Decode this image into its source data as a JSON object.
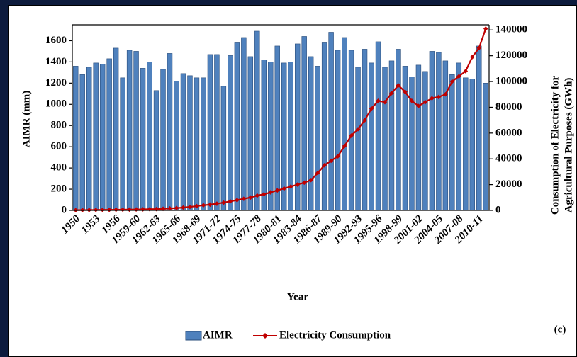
{
  "chart_data": {
    "type": "bar-line",
    "annotation": "(c)",
    "xlabel": "Year",
    "ylabel": "AIMR (mm)",
    "y2label": [
      "Consumption of Electricity for",
      "Agricultural Purposes  (GWh)"
    ],
    "categories": [
      "1950",
      null,
      null,
      "1953",
      null,
      null,
      "1956",
      null,
      null,
      "1959-60",
      null,
      null,
      "1962-63",
      null,
      null,
      "1965-66",
      null,
      null,
      "1968-69",
      null,
      null,
      "1971-72",
      null,
      null,
      "1974-75",
      null,
      null,
      "1977-78",
      null,
      null,
      "1980-81",
      null,
      null,
      "1983-84",
      null,
      null,
      "1986-87",
      null,
      null,
      "1989-90",
      null,
      null,
      "1992-93",
      null,
      null,
      "1995-96",
      null,
      null,
      "1998-99",
      null,
      null,
      "2001-02",
      null,
      null,
      "2004-05",
      null,
      null,
      "2007-08",
      null,
      null,
      "2010-11",
      null
    ],
    "series": [
      {
        "name": "AIMR",
        "type": "bar",
        "color": "#4f81bd",
        "values": [
          1360,
          1280,
          1350,
          1390,
          1380,
          1430,
          1530,
          1250,
          1510,
          1500,
          1340,
          1400,
          1130,
          1330,
          1480,
          1220,
          1290,
          1270,
          1250,
          1250,
          1470,
          1470,
          1170,
          1460,
          1580,
          1630,
          1450,
          1690,
          1420,
          1400,
          1550,
          1390,
          1400,
          1570,
          1640,
          1450,
          1360,
          1580,
          1680,
          1510,
          1630,
          1510,
          1350,
          1520,
          1390,
          1590,
          1350,
          1410,
          1520,
          1360,
          1260,
          1370,
          1310,
          1500,
          1490,
          1410,
          1280,
          1390,
          1250,
          1240,
          1550,
          1200
        ]
      },
      {
        "name": "Electricity Consumption",
        "type": "line",
        "axis": "y2",
        "color": "#c00000",
        "values": [
          200,
          250,
          300,
          350,
          400,
          450,
          500,
          550,
          600,
          700,
          800,
          900,
          1000,
          1200,
          1500,
          1800,
          2200,
          2700,
          3300,
          4000,
          4500,
          5200,
          6000,
          7000,
          8000,
          9000,
          10000,
          11500,
          12500,
          14000,
          15500,
          17000,
          18500,
          20000,
          21500,
          23500,
          29000,
          35000,
          38500,
          42000,
          50000,
          58000,
          63000,
          70000,
          79000,
          85000,
          84000,
          91000,
          97000,
          92000,
          85000,
          81000,
          84000,
          87000,
          88000,
          90000,
          100000,
          104000,
          108000,
          119000,
          126000,
          141000
        ]
      }
    ],
    "ylim": [
      0,
      1750
    ],
    "yticks": [
      0,
      200,
      400,
      600,
      800,
      1000,
      1200,
      1400,
      1600
    ],
    "y2lim": [
      0,
      144000
    ],
    "y2ticks": [
      0,
      20000,
      40000,
      60000,
      80000,
      100000,
      120000,
      140000
    ]
  }
}
